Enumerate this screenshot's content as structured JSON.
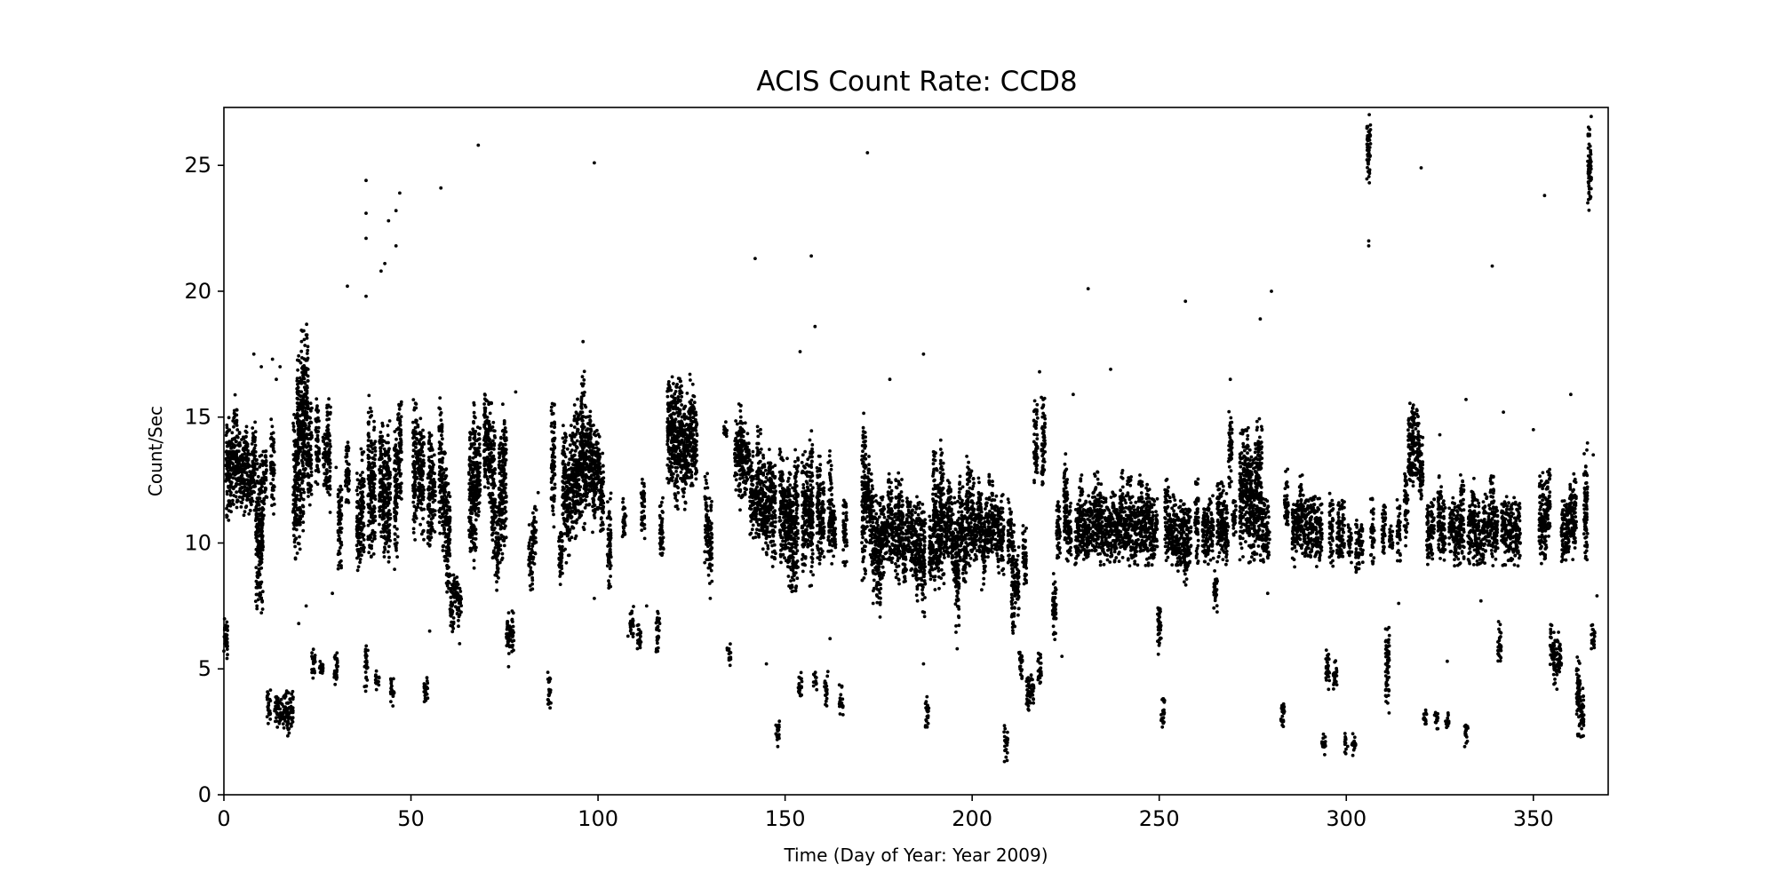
{
  "chart_data": {
    "type": "scatter",
    "title": "ACIS Count Rate: CCD8",
    "xlabel": "Time (Day of Year: Year 2009)",
    "ylabel": "Count/Sec",
    "xlim": [
      0,
      370
    ],
    "ylim": [
      0,
      27.3
    ],
    "xticks": [
      "0",
      "50",
      "100",
      "150",
      "200",
      "250",
      "300",
      "350"
    ],
    "yticks": [
      "0",
      "5",
      "10",
      "15",
      "20",
      "25"
    ],
    "grid": false,
    "legend": "none",
    "marker_color": "#000000",
    "clusters": [
      [
        0.5,
        5.0,
        7.5
      ],
      [
        1,
        10.5,
        15.5
      ],
      [
        2,
        11,
        15
      ],
      [
        3,
        11,
        16
      ],
      [
        4,
        11.5,
        15
      ],
      [
        5,
        11,
        14.5
      ],
      [
        6,
        11,
        15
      ],
      [
        7,
        11,
        14
      ],
      [
        8,
        11,
        15
      ],
      [
        9,
        7,
        14
      ],
      [
        10,
        7,
        14
      ],
      [
        11,
        11,
        14
      ],
      [
        12,
        2.5,
        4.3
      ],
      [
        13,
        11,
        15
      ],
      [
        14,
        2.5,
        4.2
      ],
      [
        15,
        2.5,
        4
      ],
      [
        16,
        2.5,
        4
      ],
      [
        17,
        2,
        4.3
      ],
      [
        18,
        2.5,
        4.2
      ],
      [
        19,
        9,
        15.5
      ],
      [
        20,
        9,
        18
      ],
      [
        21,
        10,
        19
      ],
      [
        22,
        12,
        19
      ],
      [
        23,
        11,
        16
      ],
      [
        24,
        4.5,
        6
      ],
      [
        25,
        12,
        16
      ],
      [
        26,
        4.5,
        5.5
      ],
      [
        27,
        12,
        15
      ],
      [
        28,
        11,
        16
      ],
      [
        30,
        4,
        6
      ],
      [
        31,
        8.5,
        13
      ],
      [
        33,
        11,
        14.5
      ],
      [
        36,
        8.5,
        13
      ],
      [
        37,
        9,
        14
      ],
      [
        38,
        4,
        6
      ],
      [
        39,
        9,
        16
      ],
      [
        40,
        9.5,
        15
      ],
      [
        41,
        4,
        5
      ],
      [
        42,
        10,
        15.5
      ],
      [
        43,
        9,
        14.5
      ],
      [
        44,
        8.5,
        15
      ],
      [
        45,
        3.5,
        5
      ],
      [
        46,
        8.5,
        15
      ],
      [
        47,
        11,
        16
      ],
      [
        51,
        10,
        16
      ],
      [
        52,
        11,
        15
      ],
      [
        53,
        10,
        15
      ],
      [
        54,
        3.5,
        5
      ],
      [
        55,
        9,
        15
      ],
      [
        56,
        10,
        14
      ],
      [
        58,
        10,
        16
      ],
      [
        59,
        9,
        14
      ],
      [
        60,
        7,
        13
      ],
      [
        61,
        6,
        9
      ],
      [
        62,
        7,
        9
      ],
      [
        63,
        6.5,
        8.5
      ],
      [
        66,
        9,
        15
      ],
      [
        67,
        8.5,
        16
      ],
      [
        68,
        10,
        15
      ],
      [
        70,
        12,
        16.5
      ],
      [
        71,
        11,
        16
      ],
      [
        72,
        9,
        15.5
      ],
      [
        73,
        8,
        12
      ],
      [
        74,
        9,
        15
      ],
      [
        75,
        9.5,
        16
      ],
      [
        76,
        5,
        7.5
      ],
      [
        77,
        5.5,
        7.5
      ],
      [
        82,
        8,
        11
      ],
      [
        83,
        9,
        11.5
      ],
      [
        87,
        3,
        5
      ],
      [
        88,
        10.5,
        16
      ],
      [
        90,
        8,
        11
      ],
      [
        91,
        9.5,
        15
      ],
      [
        92,
        9,
        14
      ],
      [
        93,
        10,
        15
      ],
      [
        94,
        10,
        16
      ],
      [
        95,
        10.5,
        16
      ],
      [
        96,
        10,
        17
      ],
      [
        97,
        11,
        15.5
      ],
      [
        98,
        11,
        16
      ],
      [
        99,
        10,
        15
      ],
      [
        100,
        11,
        15
      ],
      [
        101,
        10,
        14
      ],
      [
        103,
        8,
        12
      ],
      [
        107,
        10,
        12
      ],
      [
        109,
        6,
        7.5
      ],
      [
        111,
        5.5,
        7
      ],
      [
        112,
        10,
        13
      ],
      [
        116,
        5.5,
        7.5
      ],
      [
        117,
        9,
        12
      ],
      [
        119,
        12,
        17
      ],
      [
        120,
        12,
        17
      ],
      [
        121,
        11,
        16.5
      ],
      [
        122,
        12,
        17
      ],
      [
        123,
        11,
        16
      ],
      [
        124,
        12,
        16
      ],
      [
        125,
        12,
        17
      ],
      [
        126,
        12,
        16
      ],
      [
        129,
        9,
        13
      ],
      [
        130,
        8,
        12
      ],
      [
        134,
        14,
        15
      ],
      [
        135,
        5,
        6
      ],
      [
        137,
        12,
        15
      ],
      [
        138,
        11,
        16
      ],
      [
        139,
        11.5,
        15
      ],
      [
        140,
        12,
        14.5
      ],
      [
        141,
        10,
        14
      ],
      [
        142,
        10,
        13
      ],
      [
        143,
        10,
        15
      ],
      [
        144,
        9.5,
        14
      ],
      [
        145,
        9,
        13
      ],
      [
        146,
        9.5,
        14
      ],
      [
        147,
        9,
        13.5
      ],
      [
        148,
        1.8,
        3.2
      ],
      [
        149,
        9,
        14
      ],
      [
        150,
        9,
        13
      ],
      [
        151,
        8,
        14
      ],
      [
        152,
        7.5,
        13
      ],
      [
        153,
        8,
        14
      ],
      [
        154,
        3.5,
        5
      ],
      [
        155,
        8.5,
        14
      ],
      [
        156,
        9,
        13.5
      ],
      [
        157,
        8,
        15
      ],
      [
        158,
        4,
        5
      ],
      [
        159,
        9,
        14
      ],
      [
        160,
        9,
        13
      ],
      [
        161,
        3.5,
        5
      ],
      [
        162,
        9,
        14
      ],
      [
        163,
        9,
        12
      ],
      [
        165,
        3,
        4.5
      ],
      [
        166,
        9,
        12
      ],
      [
        171,
        8,
        15.5
      ],
      [
        172,
        10,
        14
      ],
      [
        173,
        9,
        13
      ],
      [
        174,
        7.5,
        12
      ],
      [
        175,
        7,
        12
      ],
      [
        176,
        8,
        12
      ],
      [
        177,
        9,
        11.5
      ],
      [
        178,
        9,
        13
      ],
      [
        179,
        9,
        12
      ],
      [
        180,
        8,
        13
      ],
      [
        181,
        9,
        13
      ],
      [
        182,
        8,
        11.5
      ],
      [
        183,
        9,
        12
      ],
      [
        184,
        8.5,
        12
      ],
      [
        185,
        7.5,
        12
      ],
      [
        186,
        8,
        12
      ],
      [
        187,
        7,
        12
      ],
      [
        188,
        2.5,
        4
      ],
      [
        189,
        8,
        11.5
      ],
      [
        190,
        8,
        14
      ],
      [
        191,
        8,
        13
      ],
      [
        192,
        8,
        14.5
      ],
      [
        193,
        9,
        12
      ],
      [
        194,
        9,
        13
      ],
      [
        195,
        8,
        12
      ],
      [
        196,
        6,
        12
      ],
      [
        197,
        9,
        13
      ],
      [
        198,
        8,
        12
      ],
      [
        199,
        9,
        14
      ],
      [
        200,
        9,
        13
      ],
      [
        201,
        9,
        12
      ],
      [
        202,
        9,
        13
      ],
      [
        203,
        8,
        11.5
      ],
      [
        204,
        9,
        12
      ],
      [
        205,
        9,
        13
      ],
      [
        206,
        9.5,
        12
      ],
      [
        207,
        8.5,
        12
      ],
      [
        208,
        8.5,
        12
      ],
      [
        209,
        1.3,
        3
      ],
      [
        210,
        9,
        12
      ],
      [
        211,
        6,
        11
      ],
      [
        212,
        7,
        10
      ],
      [
        213,
        4.5,
        6
      ],
      [
        214,
        8,
        11
      ],
      [
        215,
        3,
        5
      ],
      [
        216,
        3.5,
        5
      ],
      [
        217,
        12,
        16
      ],
      [
        218,
        4,
        6
      ],
      [
        219,
        12,
        16
      ],
      [
        222,
        6,
        9
      ],
      [
        223,
        9,
        12
      ],
      [
        225,
        9,
        14
      ],
      [
        226,
        9,
        12
      ],
      [
        228,
        9,
        12
      ],
      [
        229,
        9,
        13
      ],
      [
        230,
        9,
        12
      ],
      [
        231,
        9,
        12
      ],
      [
        232,
        9.5,
        12
      ],
      [
        233,
        9,
        13
      ],
      [
        234,
        9,
        13
      ],
      [
        235,
        9,
        12
      ],
      [
        236,
        9,
        12
      ],
      [
        237,
        9,
        12
      ],
      [
        238,
        9,
        12.5
      ],
      [
        239,
        9,
        12
      ],
      [
        240,
        9,
        13
      ],
      [
        241,
        9,
        12
      ],
      [
        242,
        9,
        13
      ],
      [
        243,
        9,
        12
      ],
      [
        244,
        9,
        12
      ],
      [
        245,
        9,
        13
      ],
      [
        246,
        9,
        12
      ],
      [
        247,
        9,
        13
      ],
      [
        248,
        9,
        12
      ],
      [
        249,
        9,
        12
      ],
      [
        250,
        5.5,
        8
      ],
      [
        251,
        2.5,
        4
      ],
      [
        252,
        9,
        13
      ],
      [
        253,
        9,
        12
      ],
      [
        254,
        9,
        12
      ],
      [
        255,
        8.5,
        11.5
      ],
      [
        256,
        8.5,
        12
      ],
      [
        257,
        8,
        12
      ],
      [
        258,
        9,
        12
      ],
      [
        260,
        9,
        13
      ],
      [
        262,
        9,
        12
      ],
      [
        263,
        9,
        12
      ],
      [
        264,
        9,
        12
      ],
      [
        265,
        7,
        9
      ],
      [
        266,
        9,
        13
      ],
      [
        267,
        9,
        12.5
      ],
      [
        268,
        9,
        12
      ],
      [
        269,
        12,
        15.5
      ],
      [
        270,
        10,
        12
      ],
      [
        272,
        9,
        15
      ],
      [
        273,
        10,
        15
      ],
      [
        274,
        9,
        15
      ],
      [
        275,
        9,
        14
      ],
      [
        276,
        9.5,
        15
      ],
      [
        277,
        9,
        15.5
      ],
      [
        278,
        9,
        12
      ],
      [
        279,
        9,
        12
      ],
      [
        283,
        2.5,
        4
      ],
      [
        284,
        10,
        13
      ],
      [
        286,
        9,
        12
      ],
      [
        287,
        9.5,
        12
      ],
      [
        288,
        9,
        13
      ],
      [
        289,
        9,
        12
      ],
      [
        290,
        9,
        12
      ],
      [
        291,
        9.5,
        12
      ],
      [
        292,
        9,
        12
      ],
      [
        293,
        9,
        12
      ],
      [
        294,
        1.5,
        2.5
      ],
      [
        295,
        4,
        6
      ],
      [
        296,
        9,
        12
      ],
      [
        297,
        4,
        5.5
      ],
      [
        298,
        9,
        12
      ],
      [
        299,
        9,
        12
      ],
      [
        300,
        1.5,
        2.5
      ],
      [
        301,
        9,
        11
      ],
      [
        302,
        1.5,
        2.5
      ],
      [
        303,
        8.5,
        11
      ],
      [
        304,
        9,
        11
      ],
      [
        306,
        24,
        27.3
      ],
      [
        307,
        9,
        12
      ],
      [
        310,
        9,
        12
      ],
      [
        311,
        3,
        7
      ],
      [
        312,
        9.5,
        11
      ],
      [
        314,
        9,
        12
      ],
      [
        316,
        9.5,
        13
      ],
      [
        317,
        12,
        16
      ],
      [
        318,
        12,
        16
      ],
      [
        319,
        12,
        15.5
      ],
      [
        320,
        11,
        14.5
      ],
      [
        321,
        2.5,
        3.5
      ],
      [
        322,
        9,
        12
      ],
      [
        323,
        9,
        12
      ],
      [
        324,
        2.5,
        3.5
      ],
      [
        325,
        9,
        13
      ],
      [
        326,
        9,
        12
      ],
      [
        327,
        2.5,
        3.5
      ],
      [
        328,
        9.5,
        12
      ],
      [
        329,
        9,
        12
      ],
      [
        330,
        9,
        12
      ],
      [
        331,
        9,
        13
      ],
      [
        332,
        1.8,
        3
      ],
      [
        333,
        9,
        12
      ],
      [
        334,
        9,
        13
      ],
      [
        335,
        9,
        12
      ],
      [
        336,
        9,
        11
      ],
      [
        337,
        9,
        12
      ],
      [
        338,
        9.5,
        12
      ],
      [
        339,
        9,
        13
      ],
      [
        340,
        9,
        12
      ],
      [
        341,
        5,
        7
      ],
      [
        342,
        9,
        12
      ],
      [
        343,
        9,
        12
      ],
      [
        344,
        9,
        12
      ],
      [
        345,
        9,
        12
      ],
      [
        346,
        9,
        12
      ],
      [
        352,
        9,
        13
      ],
      [
        353,
        9,
        13
      ],
      [
        354,
        10,
        13
      ],
      [
        355,
        4.5,
        7
      ],
      [
        356,
        4,
        6.5
      ],
      [
        357,
        4.5,
        6.5
      ],
      [
        358,
        9,
        12
      ],
      [
        359,
        9,
        12
      ],
      [
        360,
        9.5,
        13
      ],
      [
        361,
        9,
        13
      ],
      [
        362,
        2,
        6
      ],
      [
        363,
        2,
        4.5
      ],
      [
        364,
        9,
        14
      ],
      [
        365,
        23,
        27
      ],
      [
        366,
        5.5,
        7
      ]
    ],
    "outliers": [
      [
        8,
        17.5
      ],
      [
        10,
        17
      ],
      [
        13,
        17.3
      ],
      [
        14,
        16.5
      ],
      [
        15,
        17
      ],
      [
        20,
        6.8
      ],
      [
        22,
        7.5
      ],
      [
        29,
        8
      ],
      [
        30,
        13
      ],
      [
        33,
        20.2
      ],
      [
        38,
        24.4
      ],
      [
        38,
        23.1
      ],
      [
        38,
        22.1
      ],
      [
        38,
        19.8
      ],
      [
        42,
        20.8
      ],
      [
        43,
        21.1
      ],
      [
        44,
        22.8
      ],
      [
        46,
        23.2
      ],
      [
        46,
        21.8
      ],
      [
        47,
        23.9
      ],
      [
        55,
        6.5
      ],
      [
        58,
        24.1
      ],
      [
        63,
        6
      ],
      [
        68,
        25.8
      ],
      [
        78,
        16
      ],
      [
        84,
        12
      ],
      [
        96,
        18
      ],
      [
        99,
        25.1
      ],
      [
        99,
        7.8
      ],
      [
        108,
        6.3
      ],
      [
        113,
        7.5
      ],
      [
        130,
        7.8
      ],
      [
        135,
        5.8
      ],
      [
        142,
        21.3
      ],
      [
        145,
        5.2
      ],
      [
        154,
        17.6
      ],
      [
        157,
        21.4
      ],
      [
        158,
        18.6
      ],
      [
        162,
        6.2
      ],
      [
        172,
        25.5
      ],
      [
        178,
        16.5
      ],
      [
        187,
        5.2
      ],
      [
        187,
        17.5
      ],
      [
        196,
        5.8
      ],
      [
        218,
        16.8
      ],
      [
        224,
        5.5
      ],
      [
        227,
        15.9
      ],
      [
        231,
        20.1
      ],
      [
        237,
        16.9
      ],
      [
        257,
        19.6
      ],
      [
        269,
        16.5
      ],
      [
        277,
        18.9
      ],
      [
        279,
        8
      ],
      [
        280,
        20
      ],
      [
        306,
        22
      ],
      [
        306,
        21.8
      ],
      [
        314,
        7.6
      ],
      [
        320,
        24.9
      ],
      [
        325,
        14.3
      ],
      [
        327,
        5.3
      ],
      [
        332,
        15.7
      ],
      [
        336,
        7.7
      ],
      [
        339,
        21
      ],
      [
        342,
        15.2
      ],
      [
        350,
        14.5
      ],
      [
        353,
        23.8
      ],
      [
        360,
        15.9
      ],
      [
        366,
        13.5
      ],
      [
        367,
        7.9
      ]
    ]
  }
}
